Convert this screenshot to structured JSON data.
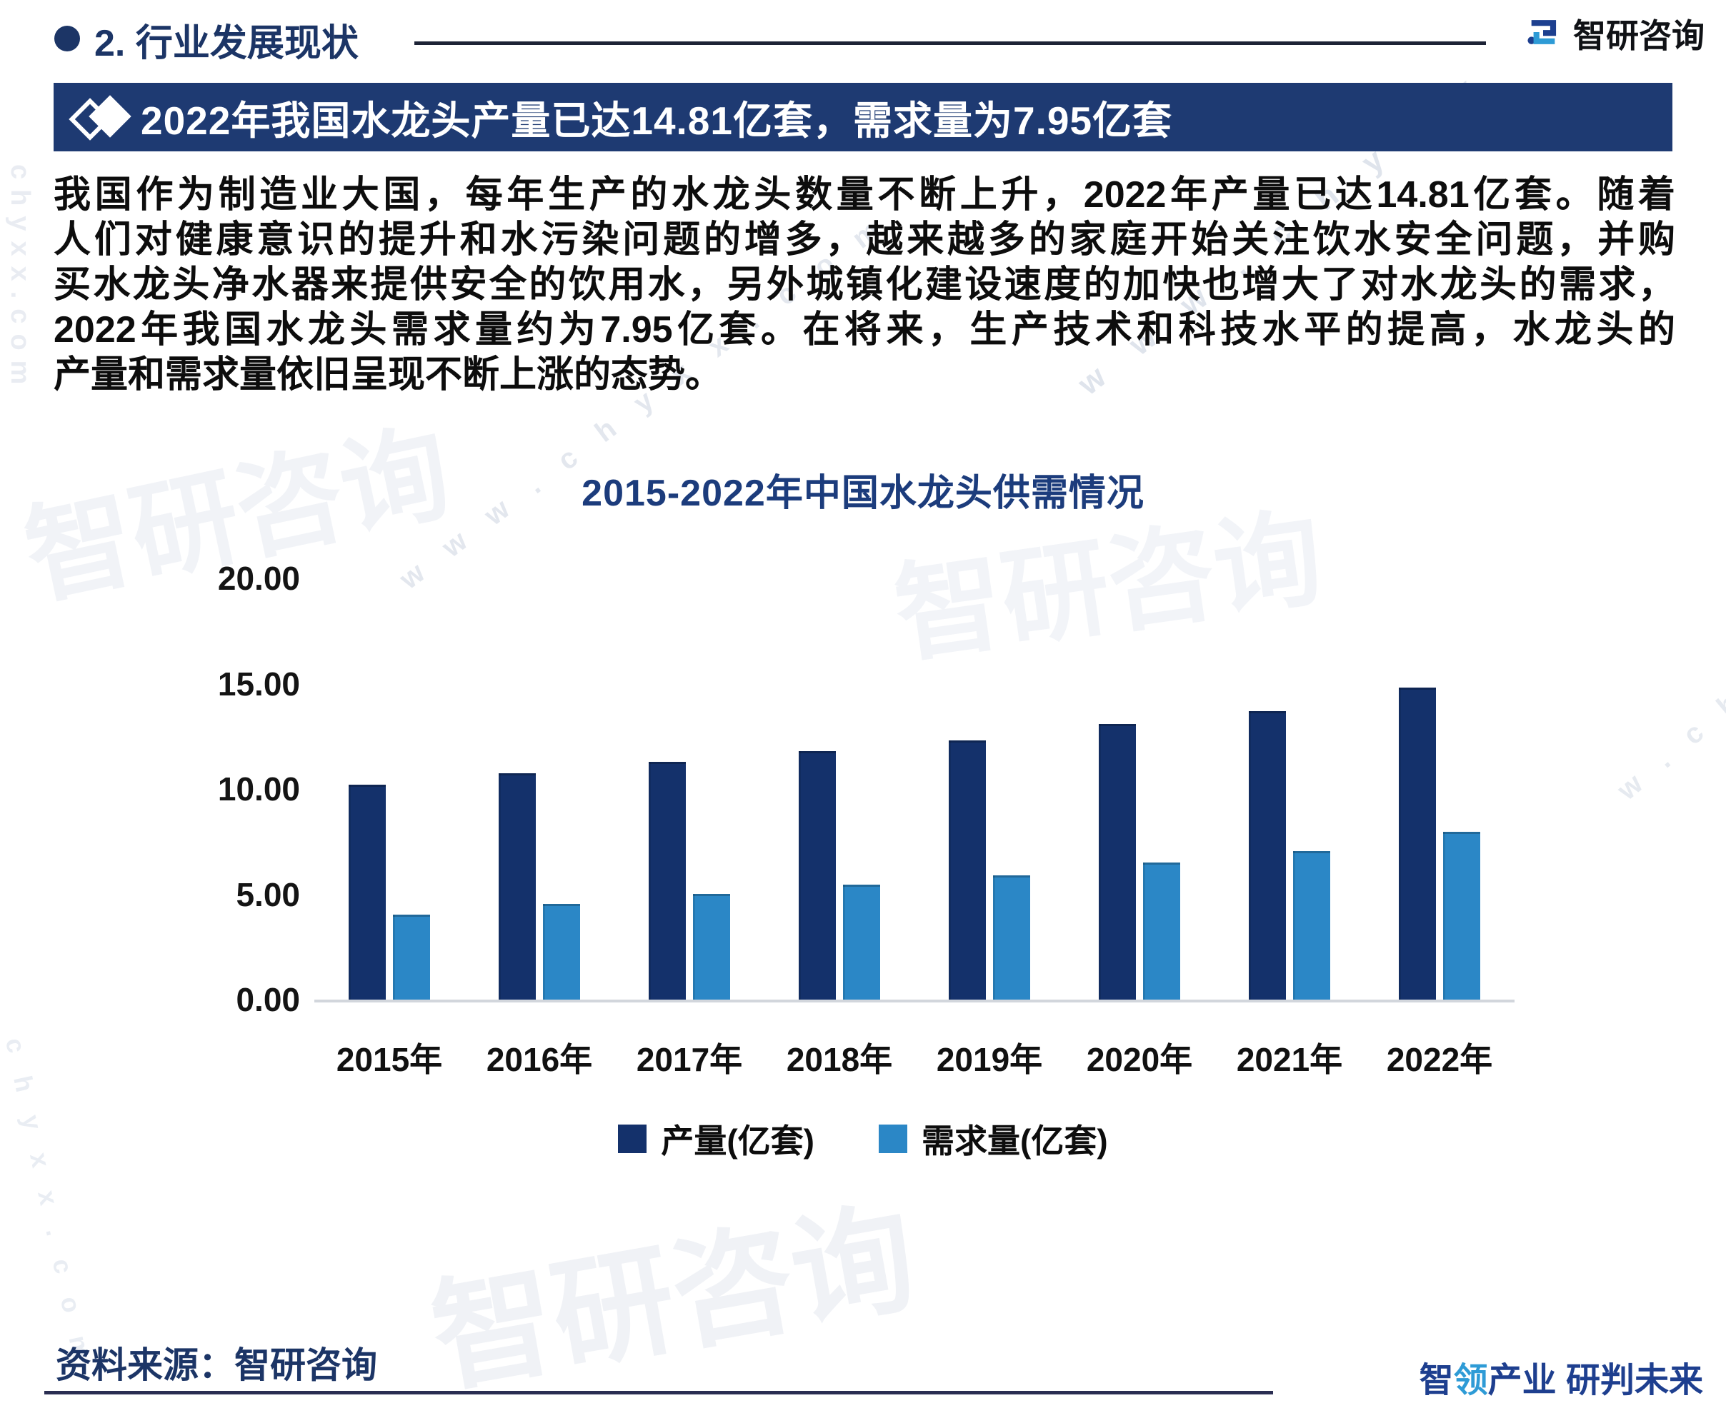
{
  "header": {
    "section_label": "2. 行业发展现状",
    "brand_name": "智研咨询"
  },
  "banner": {
    "title": "2022年我国水龙头产量已达14.81亿套，需求量为7.95亿套",
    "background_color": "#1e3a72"
  },
  "paragraph": {
    "lines": [
      "我国作为制造业大国，每年生产的水龙头数量不断上升，2022年产量已达14.81亿套。随着",
      "人们对健康意识的提升和水污染问题的增多，越来越多的家庭开始关注饮水安全问题，并购",
      "买水龙头净水器来提供安全的饮用水，另外城镇化建设速度的加快也增大了对水龙头的需求，",
      "2022年我国水龙头需求量约为7.95亿套。在将来，生产技术和科技水平的提高，水龙头的",
      "产量和需求量依旧呈现不断上涨的态势。"
    ]
  },
  "chart_data": {
    "type": "bar",
    "title": "2015-2022年中国水龙头供需情况",
    "categories": [
      "2015年",
      "2016年",
      "2017年",
      "2018年",
      "2019年",
      "2020年",
      "2021年",
      "2022年"
    ],
    "series": [
      {
        "name": "产量(亿套)",
        "color": "#14316b",
        "values": [
          10.2,
          10.75,
          11.3,
          11.8,
          12.3,
          13.1,
          13.7,
          14.81
        ]
      },
      {
        "name": "需求量(亿套)",
        "color": "#2b87c6",
        "values": [
          4.05,
          4.55,
          5.0,
          5.45,
          5.9,
          6.5,
          7.05,
          7.95
        ]
      }
    ],
    "xlabel": "",
    "ylabel": "",
    "ylim": [
      0,
      20
    ],
    "yticks": [
      "20.00",
      "15.00",
      "10.00",
      "5.00",
      "0.00"
    ],
    "grid": false,
    "legend_position": "bottom"
  },
  "footer": {
    "source": "资料来源：智研咨询",
    "slogan_part1": "智",
    "slogan_part2": "领",
    "slogan_part3": "产业 研判未来",
    "slogan_navy": "#1e3f8f",
    "slogan_accent": "#2e9bd6"
  },
  "colors": {
    "header_navy": "#1c3566",
    "banner_navy": "#1e3a72",
    "production_bar": "#14316b",
    "demand_bar": "#2b87c6",
    "logo_dark_blue": "#1d3f8f",
    "logo_light_blue": "#2e9bd6"
  },
  "watermarks": [
    "w w w . c h y x x",
    "w w w . c h y x x . c o m",
    "chyxx.com",
    "智研咨询",
    "智研咨询",
    "智研咨询",
    "c h y x x . c o m",
    "w . c h y x"
  ]
}
